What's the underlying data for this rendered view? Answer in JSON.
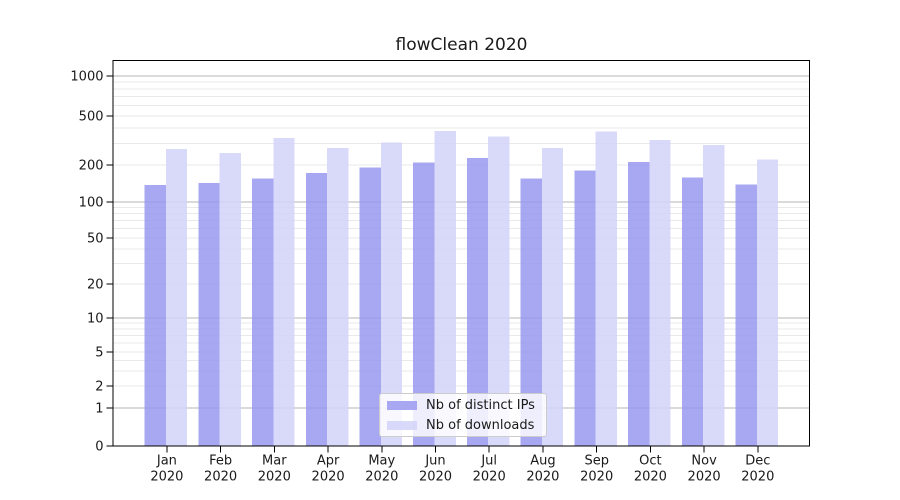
{
  "chart_data": {
    "type": "bar",
    "title": "flowClean 2020",
    "months": [
      "Jan",
      "Feb",
      "Mar",
      "Apr",
      "May",
      "Jun",
      "Jul",
      "Aug",
      "Sep",
      "Oct",
      "Nov",
      "Dec"
    ],
    "year_label": "2020",
    "series": [
      {
        "name": "Nb of distinct IPs",
        "color": "#9999f0",
        "values": [
          138,
          143,
          156,
          172,
          190,
          210,
          227,
          156,
          180,
          212,
          158,
          139
        ]
      },
      {
        "name": "Nb of downloads",
        "color": "#d2d2f9",
        "values": [
          270,
          250,
          330,
          276,
          306,
          378,
          340,
          276,
          373,
          320,
          290,
          221
        ]
      }
    ],
    "yscale": "symlog",
    "yticks": [
      0,
      1,
      2,
      5,
      10,
      20,
      50,
      100,
      200,
      500,
      1000
    ],
    "ylim": [
      0,
      1300
    ],
    "grid": true,
    "legend_position": "lower center"
  },
  "style": {
    "bar_fill_opacity": 0.85,
    "grid_major_color": "#b5b5b5",
    "grid_minor_color": "#e9e9e9",
    "axis_color": "#000000",
    "text_color": "#1a1a1a",
    "legend_background": "rgba(255,255,255,0.8)",
    "legend_border_color": "#cccccc",
    "background": "#ffffff"
  }
}
